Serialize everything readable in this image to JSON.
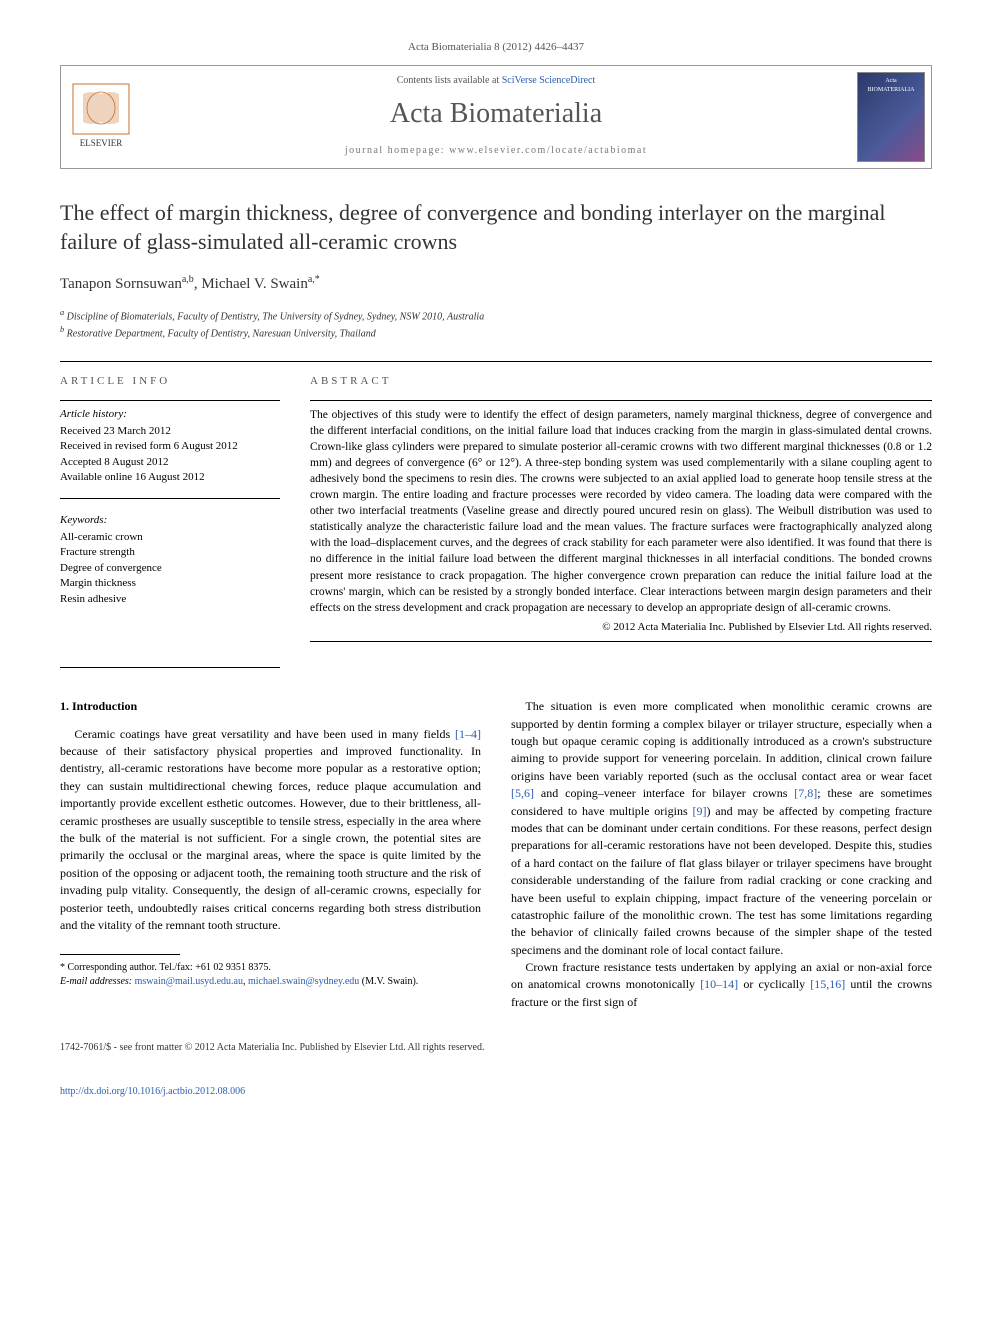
{
  "citation": "Acta Biomaterialia 8 (2012) 4426–4437",
  "header": {
    "contents_prefix": "Contents lists available at ",
    "contents_link": "SciVerse ScienceDirect",
    "journal": "Acta Biomaterialia",
    "homepage_label": "journal homepage: ",
    "homepage_url": "www.elsevier.com/locate/actabiomat",
    "publisher": "ELSEVIER",
    "cover_label": "Acta BIOMATERIALIA"
  },
  "title": "The effect of margin thickness, degree of convergence and bonding interlayer on the marginal failure of glass-simulated all-ceramic crowns",
  "authors": {
    "a1_name": "Tanapon Sornsuwan",
    "a1_sup": "a,b",
    "a2_name": "Michael V. Swain",
    "a2_sup": "a,",
    "a2_corr": "*"
  },
  "affiliations": {
    "a": "Discipline of Biomaterials, Faculty of Dentistry, The University of Sydney, Sydney, NSW 2010, Australia",
    "b": "Restorative Department, Faculty of Dentistry, Naresuan University, Thailand"
  },
  "info": {
    "header": "ARTICLE INFO",
    "history_label": "Article history:",
    "received": "Received 23 March 2012",
    "revised": "Received in revised form 6 August 2012",
    "accepted": "Accepted 8 August 2012",
    "online": "Available online 16 August 2012",
    "keywords_label": "Keywords:",
    "kw1": "All-ceramic crown",
    "kw2": "Fracture strength",
    "kw3": "Degree of convergence",
    "kw4": "Margin thickness",
    "kw5": "Resin adhesive"
  },
  "abstract": {
    "header": "ABSTRACT",
    "text": "The objectives of this study were to identify the effect of design parameters, namely marginal thickness, degree of convergence and the different interfacial conditions, on the initial failure load that induces cracking from the margin in glass-simulated dental crowns. Crown-like glass cylinders were prepared to simulate posterior all-ceramic crowns with two different marginal thicknesses (0.8 or 1.2 mm) and degrees of convergence (6° or 12°). A three-step bonding system was used complementarily with a silane coupling agent to adhesively bond the specimens to resin dies. The crowns were subjected to an axial applied load to generate hoop tensile stress at the crown margin. The entire loading and fracture processes were recorded by video camera. The loading data were compared with the other two interfacial treatments (Vaseline grease and directly poured uncured resin on glass). The Weibull distribution was used to statistically analyze the characteristic failure load and the mean values. The fracture surfaces were fractographically analyzed along with the load–displacement curves, and the degrees of crack stability for each parameter were also identified. It was found that there is no difference in the initial failure load between the different marginal thicknesses in all interfacial conditions. The bonded crowns present more resistance to crack propagation. The higher convergence crown preparation can reduce the initial failure load at the crowns' margin, which can be resisted by a strongly bonded interface. Clear interactions between margin design parameters and their effects on the stress development and crack propagation are necessary to develop an appropriate design of all-ceramic crowns.",
    "copyright": "© 2012 Acta Materialia Inc. Published by Elsevier Ltd. All rights reserved."
  },
  "body": {
    "heading": "1. Introduction",
    "col1_p1": "Ceramic coatings have great versatility and have been used in many fields [1–4] because of their satisfactory physical properties and improved functionality. In dentistry, all-ceramic restorations have become more popular as a restorative option; they can sustain multidirectional chewing forces, reduce plaque accumulation and importantly provide excellent esthetic outcomes. However, due to their brittleness, all-ceramic prostheses are usually susceptible to tensile stress, especially in the area where the bulk of the material is not sufficient. For a single crown, the potential sites are primarily the occlusal or the marginal areas, where the space is quite limited by the position of the opposing or adjacent tooth, the remaining tooth structure and the risk of invading pulp vitality. Consequently, the design of all-ceramic crowns, especially for posterior teeth, undoubtedly raises critical concerns regarding both stress distribution and the vitality of the remnant tooth structure.",
    "col2_p1": "The situation is even more complicated when monolithic ceramic crowns are supported by dentin forming a complex bilayer or trilayer structure, especially when a tough but opaque ceramic coping is additionally introduced as a crown's substructure aiming to provide support for veneering porcelain. In addition, clinical crown failure origins have been variably reported (such as the occlusal contact area or wear facet [5,6] and coping–veneer interface for bilayer crowns [7,8]; these are sometimes considered to have multiple origins [9]) and may be affected by competing fracture modes that can be dominant under certain conditions. For these reasons, perfect design preparations for all-ceramic restorations have not been developed. Despite this, studies of a hard contact on the failure of flat glass bilayer or trilayer specimens have brought considerable understanding of the failure from radial cracking or cone cracking and have been useful to explain chipping, impact fracture of the veneering porcelain or catastrophic failure of the monolithic crown. The test has some limitations regarding the behavior of clinically failed crowns because of the simpler shape of the tested specimens and the dominant role of local contact failure.",
    "col2_p2": "Crown fracture resistance tests undertaken by applying an axial or non-axial force on anatomical crowns monotonically [10–14] or cyclically [15,16] until the crowns fracture or the first sign of"
  },
  "refs": {
    "r1_4": "[1–4]",
    "r5_6": "[5,6]",
    "r7_8": "[7,8]",
    "r9": "[9]",
    "r10_14": "[10–14]",
    "r15_16": "[15,16]"
  },
  "footnote": {
    "corr": "* Corresponding author. Tel./fax: +61 02 9351 8375.",
    "email_label": "E-mail addresses: ",
    "email1": "mswain@mail.usyd.edu.au",
    "email_sep": ", ",
    "email2": "michael.swain@sydney.edu",
    "email_tail": " (M.V. Swain)."
  },
  "footer": {
    "issn": "1742-7061/$ - see front matter © 2012 Acta Materialia Inc. Published by Elsevier Ltd. All rights reserved.",
    "doi_label": "http://dx.doi.org/",
    "doi": "10.1016/j.actbio.2012.08.006"
  },
  "colors": {
    "link": "#2a5db0",
    "text": "#000000",
    "muted": "#555555",
    "border": "#000000"
  },
  "typography": {
    "body_fontsize_pt": 12,
    "title_fontsize_pt": 22,
    "journal_fontsize_pt": 28,
    "abstract_fontsize_pt": 11.5,
    "footnote_fontsize_pt": 10
  }
}
